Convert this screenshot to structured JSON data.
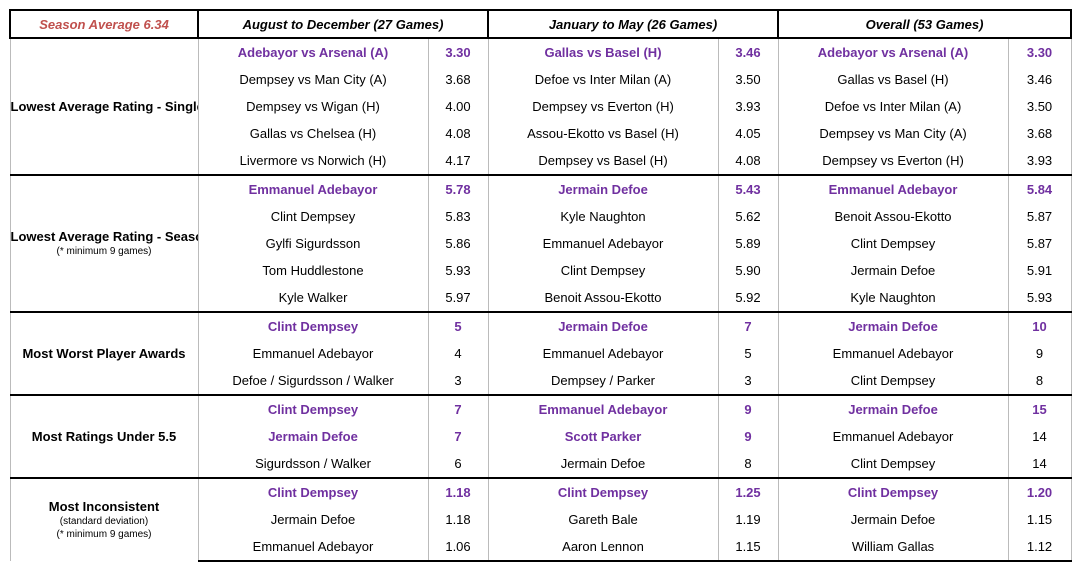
{
  "header": {
    "season_average": "Season Average 6.34",
    "col1": "August to December (27 Games)",
    "col2": "January to May (26 Games)",
    "col3": "Overall (53 Games)"
  },
  "colors": {
    "highlight": "#7030a0",
    "season_average": "#c0504d"
  },
  "groups": [
    {
      "label": "Lowest Average Rating - Single Match",
      "sub": "",
      "rows": [
        {
          "c1": [
            "Adebayor vs Arsenal (A)",
            "3.30",
            true
          ],
          "c2": [
            "Gallas vs Basel (H)",
            "3.46",
            true
          ],
          "c3": [
            "Adebayor vs Arsenal (A)",
            "3.30",
            true
          ]
        },
        {
          "c1": [
            "Dempsey vs Man City (A)",
            "3.68",
            false
          ],
          "c2": [
            "Defoe vs Inter Milan (A)",
            "3.50",
            false
          ],
          "c3": [
            "Gallas vs Basel (H)",
            "3.46",
            false
          ]
        },
        {
          "c1": [
            "Dempsey vs Wigan (H)",
            "4.00",
            false
          ],
          "c2": [
            "Dempsey vs Everton (H)",
            "3.93",
            false
          ],
          "c3": [
            "Defoe vs Inter Milan (A)",
            "3.50",
            false
          ]
        },
        {
          "c1": [
            "Gallas vs Chelsea (H)",
            "4.08",
            false
          ],
          "c2": [
            "Assou-Ekotto vs Basel (H)",
            "4.05",
            false
          ],
          "c3": [
            "Dempsey vs Man City (A)",
            "3.68",
            false
          ]
        },
        {
          "c1": [
            "Livermore vs Norwich (H)",
            "4.17",
            false
          ],
          "c2": [
            "Dempsey vs Basel (H)",
            "4.08",
            false
          ],
          "c3": [
            "Dempsey vs Everton (H)",
            "3.93",
            false
          ]
        }
      ]
    },
    {
      "label": "Lowest Average Rating - Season",
      "sub": "(* minimum 9 games)",
      "rows": [
        {
          "c1": [
            "Emmanuel Adebayor",
            "5.78",
            true
          ],
          "c2": [
            "Jermain Defoe",
            "5.43",
            true
          ],
          "c3": [
            "Emmanuel Adebayor",
            "5.84",
            true
          ]
        },
        {
          "c1": [
            "Clint Dempsey",
            "5.83",
            false
          ],
          "c2": [
            "Kyle Naughton",
            "5.62",
            false
          ],
          "c3": [
            "Benoit Assou-Ekotto",
            "5.87",
            false
          ]
        },
        {
          "c1": [
            "Gylfi Sigurdsson",
            "5.86",
            false
          ],
          "c2": [
            "Emmanuel Adebayor",
            "5.89",
            false
          ],
          "c3": [
            "Clint Dempsey",
            "5.87",
            false
          ]
        },
        {
          "c1": [
            "Tom Huddlestone",
            "5.93",
            false
          ],
          "c2": [
            "Clint Dempsey",
            "5.90",
            false
          ],
          "c3": [
            "Jermain Defoe",
            "5.91",
            false
          ]
        },
        {
          "c1": [
            "Kyle Walker",
            "5.97",
            false
          ],
          "c2": [
            "Benoit Assou-Ekotto",
            "5.92",
            false
          ],
          "c3": [
            "Kyle Naughton",
            "5.93",
            false
          ]
        }
      ]
    },
    {
      "label": "Most Worst Player Awards",
      "sub": "",
      "rows": [
        {
          "c1": [
            "Clint Dempsey",
            "5",
            true
          ],
          "c2": [
            "Jermain Defoe",
            "7",
            true
          ],
          "c3": [
            "Jermain Defoe",
            "10",
            true
          ]
        },
        {
          "c1": [
            "Emmanuel Adebayor",
            "4",
            false
          ],
          "c2": [
            "Emmanuel Adebayor",
            "5",
            false
          ],
          "c3": [
            "Emmanuel Adebayor",
            "9",
            false
          ]
        },
        {
          "c1": [
            "Defoe / Sigurdsson / Walker",
            "3",
            false
          ],
          "c2": [
            "Dempsey / Parker",
            "3",
            false
          ],
          "c3": [
            "Clint Dempsey",
            "8",
            false
          ]
        }
      ]
    },
    {
      "label": "Most Ratings Under 5.5",
      "sub": "",
      "rows": [
        {
          "c1": [
            "Clint Dempsey",
            "7",
            true
          ],
          "c2": [
            "Emmanuel Adebayor",
            "9",
            true
          ],
          "c3": [
            "Jermain Defoe",
            "15",
            true
          ]
        },
        {
          "c1": [
            "Jermain Defoe",
            "7",
            true
          ],
          "c2": [
            "Scott Parker",
            "9",
            true
          ],
          "c3": [
            "Emmanuel Adebayor",
            "14",
            false
          ]
        },
        {
          "c1": [
            "Sigurdsson / Walker",
            "6",
            false
          ],
          "c2": [
            "Jermain Defoe",
            "8",
            false
          ],
          "c3": [
            "Clint Dempsey",
            "14",
            false
          ]
        }
      ]
    },
    {
      "label": "Most Inconsistent",
      "sub": "(standard deviation)\n(* minimum 9 games)",
      "rows": [
        {
          "c1": [
            "Clint Dempsey",
            "1.18",
            true
          ],
          "c2": [
            "Clint Dempsey",
            "1.25",
            true
          ],
          "c3": [
            "Clint Dempsey",
            "1.20",
            true
          ]
        },
        {
          "c1": [
            "Jermain Defoe",
            "1.18",
            false
          ],
          "c2": [
            "Gareth Bale",
            "1.19",
            false
          ],
          "c3": [
            "Jermain Defoe",
            "1.15",
            false
          ]
        },
        {
          "c1": [
            "Emmanuel Adebayor",
            "1.06",
            false
          ],
          "c2": [
            "Aaron Lennon",
            "1.15",
            false
          ],
          "c3": [
            "William Gallas",
            "1.12",
            false
          ]
        }
      ]
    }
  ]
}
